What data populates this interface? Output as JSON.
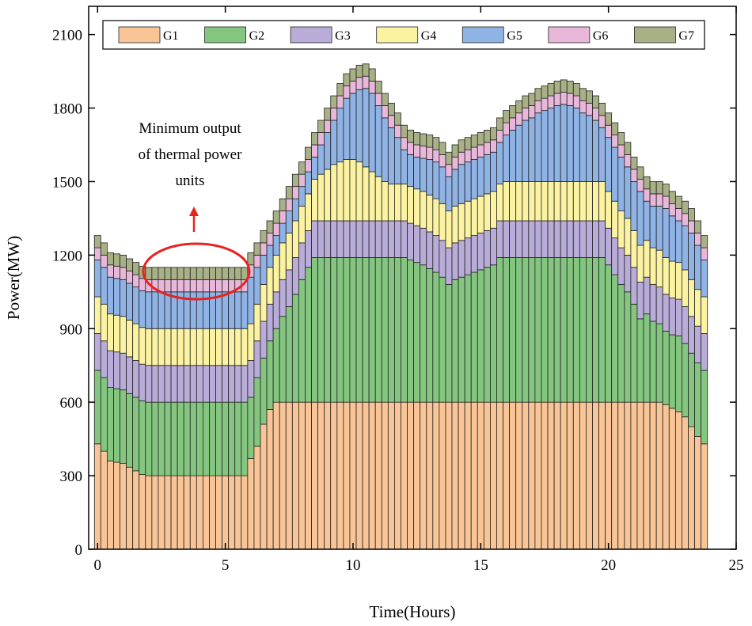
{
  "chart_data": {
    "type": "stacked_bar",
    "xlabel": "Time(Hours)",
    "ylabel": "Power(MW)",
    "annotation": [
      "Minimum output",
      "of thermal power",
      "units"
    ],
    "xlim": [
      -0.35,
      25
    ],
    "xticks": [
      0,
      5,
      10,
      15,
      20,
      25
    ],
    "ylim": [
      0,
      2215
    ],
    "yticks": [
      0,
      300,
      600,
      900,
      1200,
      1500,
      1800,
      2100
    ],
    "bar_width": 0.25,
    "x": [
      0,
      0.25,
      0.5,
      0.75,
      1,
      1.25,
      1.5,
      1.75,
      2,
      2.25,
      2.5,
      2.75,
      3,
      3.25,
      3.5,
      3.75,
      4,
      4.25,
      4.5,
      4.75,
      5,
      5.25,
      5.5,
      5.75,
      6,
      6.25,
      6.5,
      6.75,
      7,
      7.25,
      7.5,
      7.75,
      8,
      8.25,
      8.5,
      8.75,
      9,
      9.25,
      9.5,
      9.75,
      10,
      10.25,
      10.5,
      10.75,
      11,
      11.25,
      11.5,
      11.75,
      12,
      12.25,
      12.5,
      12.75,
      13,
      13.25,
      13.5,
      13.75,
      14,
      14.25,
      14.5,
      14.75,
      15,
      15.25,
      15.5,
      15.75,
      16,
      16.25,
      16.5,
      16.75,
      17,
      17.25,
      17.5,
      17.75,
      18,
      18.25,
      18.5,
      18.75,
      19,
      19.25,
      19.5,
      19.75,
      20,
      20.25,
      20.5,
      20.75,
      21,
      21.25,
      21.5,
      21.75,
      22,
      22.25,
      22.5,
      22.75,
      23,
      23.25,
      23.5,
      23.75
    ],
    "series": [
      {
        "name": "G1",
        "color": "#f9c596",
        "values": [
          430,
          400,
          360,
          355,
          350,
          335,
          320,
          305,
          300,
          300,
          300,
          300,
          300,
          300,
          300,
          300,
          300,
          300,
          300,
          300,
          300,
          300,
          300,
          300,
          370,
          420,
          510,
          570,
          600,
          600,
          600,
          600,
          600,
          600,
          600,
          600,
          600,
          600,
          600,
          600,
          600,
          600,
          600,
          600,
          600,
          600,
          600,
          600,
          600,
          600,
          600,
          600,
          600,
          600,
          600,
          600,
          600,
          600,
          600,
          600,
          600,
          600,
          600,
          600,
          600,
          600,
          600,
          600,
          600,
          600,
          600,
          600,
          600,
          600,
          600,
          600,
          600,
          600,
          600,
          600,
          600,
          600,
          600,
          600,
          600,
          600,
          600,
          600,
          600,
          590,
          575,
          560,
          540,
          500,
          460,
          430
        ]
      },
      {
        "name": "G2",
        "color": "#84c680",
        "values": [
          300,
          300,
          300,
          300,
          300,
          300,
          300,
          300,
          300,
          300,
          300,
          300,
          300,
          300,
          300,
          300,
          300,
          300,
          300,
          300,
          300,
          300,
          300,
          300,
          250,
          280,
          270,
          280,
          300,
          350,
          390,
          440,
          500,
          550,
          590,
          590,
          590,
          590,
          590,
          590,
          590,
          590,
          590,
          590,
          590,
          590,
          590,
          590,
          590,
          580,
          570,
          560,
          545,
          530,
          510,
          480,
          500,
          510,
          520,
          530,
          540,
          550,
          560,
          590,
          590,
          590,
          590,
          590,
          590,
          590,
          590,
          590,
          590,
          590,
          590,
          590,
          590,
          590,
          590,
          590,
          560,
          520,
          480,
          450,
          400,
          340,
          360,
          330,
          320,
          300,
          300,
          310,
          300,
          300,
          300,
          300
        ]
      },
      {
        "name": "G3",
        "color": "#b9acd8",
        "values": [
          150,
          150,
          150,
          150,
          150,
          150,
          150,
          150,
          150,
          150,
          150,
          150,
          150,
          150,
          150,
          150,
          150,
          150,
          150,
          150,
          150,
          150,
          150,
          150,
          150,
          150,
          150,
          150,
          150,
          150,
          150,
          150,
          150,
          150,
          150,
          150,
          150,
          150,
          150,
          150,
          150,
          150,
          150,
          150,
          150,
          150,
          150,
          150,
          150,
          150,
          150,
          150,
          150,
          150,
          150,
          150,
          150,
          150,
          150,
          150,
          150,
          150,
          150,
          150,
          150,
          150,
          150,
          150,
          150,
          150,
          150,
          150,
          150,
          150,
          150,
          150,
          150,
          150,
          150,
          150,
          150,
          150,
          150,
          150,
          150,
          150,
          150,
          150,
          150,
          150,
          150,
          150,
          150,
          150,
          150,
          150
        ]
      },
      {
        "name": "G4",
        "color": "#fbf3a2",
        "values": [
          150,
          150,
          150,
          150,
          150,
          150,
          150,
          150,
          150,
          150,
          150,
          150,
          150,
          150,
          150,
          150,
          150,
          150,
          150,
          150,
          150,
          150,
          150,
          150,
          150,
          150,
          150,
          150,
          150,
          150,
          150,
          150,
          150,
          150,
          170,
          190,
          210,
          230,
          240,
          250,
          250,
          240,
          220,
          200,
          180,
          160,
          150,
          150,
          150,
          150,
          150,
          150,
          150,
          150,
          150,
          150,
          150,
          150,
          150,
          150,
          150,
          150,
          150,
          150,
          160,
          160,
          160,
          160,
          160,
          160,
          160,
          160,
          160,
          160,
          160,
          160,
          160,
          160,
          160,
          160,
          150,
          150,
          150,
          150,
          150,
          150,
          150,
          150,
          150,
          150,
          150,
          150,
          150,
          150,
          150,
          150
        ]
      },
      {
        "name": "G5",
        "color": "#90b3e5",
        "values": [
          150,
          150,
          150,
          150,
          150,
          150,
          150,
          150,
          150,
          150,
          150,
          150,
          150,
          150,
          150,
          150,
          150,
          150,
          150,
          150,
          150,
          150,
          150,
          150,
          190,
          150,
          120,
          90,
          80,
          80,
          90,
          90,
          80,
          90,
          90,
          120,
          150,
          180,
          220,
          250,
          270,
          295,
          320,
          320,
          290,
          260,
          230,
          190,
          140,
          130,
          130,
          135,
          145,
          150,
          150,
          140,
          150,
          160,
          160,
          160,
          160,
          160,
          160,
          170,
          190,
          210,
          230,
          250,
          260,
          280,
          290,
          300,
          310,
          315,
          310,
          300,
          280,
          270,
          250,
          220,
          220,
          220,
          220,
          210,
          200,
          220,
          160,
          170,
          180,
          200,
          185,
          170,
          180,
          190,
          180,
          150
        ]
      },
      {
        "name": "G6",
        "color": "#e8b7d9",
        "values": [
          50,
          50,
          50,
          50,
          50,
          50,
          50,
          50,
          50,
          50,
          50,
          50,
          50,
          50,
          50,
          50,
          50,
          50,
          50,
          50,
          50,
          50,
          50,
          50,
          50,
          50,
          50,
          50,
          50,
          50,
          50,
          50,
          50,
          50,
          50,
          50,
          50,
          50,
          50,
          50,
          50,
          50,
          50,
          50,
          50,
          50,
          50,
          50,
          50,
          50,
          50,
          50,
          50,
          50,
          50,
          50,
          50,
          50,
          50,
          50,
          50,
          50,
          50,
          50,
          50,
          50,
          50,
          50,
          50,
          50,
          50,
          50,
          50,
          50,
          50,
          50,
          50,
          50,
          50,
          50,
          50,
          50,
          50,
          50,
          50,
          50,
          50,
          50,
          50,
          50,
          50,
          50,
          50,
          50,
          50,
          50
        ]
      },
      {
        "name": "G7",
        "color": "#a8b086",
        "values": [
          50,
          50,
          50,
          50,
          50,
          50,
          50,
          50,
          50,
          50,
          50,
          50,
          50,
          50,
          50,
          50,
          50,
          50,
          50,
          50,
          50,
          50,
          50,
          50,
          50,
          50,
          50,
          50,
          50,
          50,
          50,
          50,
          50,
          50,
          50,
          50,
          50,
          50,
          50,
          50,
          50,
          50,
          50,
          50,
          50,
          50,
          50,
          50,
          50,
          50,
          50,
          50,
          50,
          50,
          50,
          50,
          50,
          50,
          50,
          50,
          50,
          50,
          50,
          50,
          50,
          50,
          50,
          50,
          50,
          50,
          50,
          50,
          50,
          50,
          50,
          50,
          50,
          50,
          50,
          50,
          50,
          50,
          50,
          50,
          50,
          50,
          50,
          50,
          50,
          50,
          50,
          50,
          50,
          50,
          50,
          50
        ]
      }
    ]
  }
}
